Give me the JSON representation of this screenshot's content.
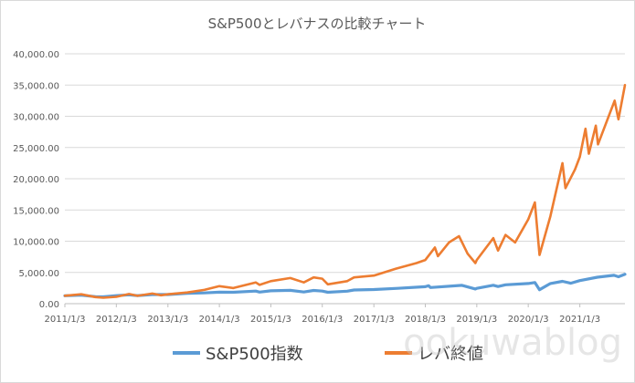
{
  "chart_data": {
    "type": "line",
    "title": "S&P500とレバナスの比較チャート",
    "xlabel": "",
    "ylabel": "",
    "ylim": [
      0,
      40000
    ],
    "yticks": [
      "0.00",
      "5,000.00",
      "10,000.00",
      "15,000.00",
      "20,000.00",
      "25,000.00",
      "30,000.00",
      "35,000.00",
      "40,000.00"
    ],
    "xticks": [
      "2011/1/3",
      "2012/1/3",
      "2013/1/3",
      "2014/1/3",
      "2015/1/3",
      "2016/1/3",
      "2017/1/3",
      "2018/1/3",
      "2019/1/3",
      "2020/1/3",
      "2021/1/3"
    ],
    "x_range": [
      "2011/1/3",
      "2021/11/19"
    ],
    "grid": true,
    "legend_position": "bottom",
    "series": [
      {
        "name": "S&P500指数",
        "color": "#5b9bd5",
        "points": [
          [
            "2011/1/3",
            1270
          ],
          [
            "2011/4/29",
            1360
          ],
          [
            "2011/8/8",
            1120
          ],
          [
            "2011/10/3",
            1100
          ],
          [
            "2012/1/3",
            1280
          ],
          [
            "2012/4/2",
            1420
          ],
          [
            "2012/6/1",
            1280
          ],
          [
            "2012/9/14",
            1460
          ],
          [
            "2013/1/3",
            1460
          ],
          [
            "2013/5/21",
            1670
          ],
          [
            "2013/9/18",
            1720
          ],
          [
            "2014/1/3",
            1840
          ],
          [
            "2014/4/11",
            1820
          ],
          [
            "2014/9/18",
            2010
          ],
          [
            "2014/10/15",
            1860
          ],
          [
            "2015/1/3",
            2060
          ],
          [
            "2015/5/21",
            2130
          ],
          [
            "2015/8/25",
            1870
          ],
          [
            "2015/11/3",
            2110
          ],
          [
            "2016/1/3",
            2010
          ],
          [
            "2016/2/11",
            1830
          ],
          [
            "2016/6/27",
            2000
          ],
          [
            "2016/8/15",
            2190
          ],
          [
            "2017/1/3",
            2260
          ],
          [
            "2017/6/19",
            2450
          ],
          [
            "2018/1/3",
            2710
          ],
          [
            "2018/1/26",
            2870
          ],
          [
            "2018/2/8",
            2580
          ],
          [
            "2018/9/20",
            2930
          ],
          [
            "2018/12/24",
            2350
          ],
          [
            "2019/1/3",
            2450
          ],
          [
            "2019/4/30",
            2950
          ],
          [
            "2019/6/3",
            2740
          ],
          [
            "2019/7/26",
            3020
          ],
          [
            "2020/1/3",
            3230
          ],
          [
            "2020/2/19",
            3390
          ],
          [
            "2020/3/23",
            2240
          ],
          [
            "2020/6/8",
            3230
          ],
          [
            "2020/9/2",
            3580
          ],
          [
            "2020/10/30",
            3270
          ],
          [
            "2021/1/3",
            3700
          ],
          [
            "2021/5/7",
            4230
          ],
          [
            "2021/9/2",
            4540
          ],
          [
            "2021/10/4",
            4300
          ],
          [
            "2021/11/19",
            4700
          ]
        ]
      },
      {
        "name": "レバ終値",
        "color": "#ed7d31",
        "points": [
          [
            "2011/1/3",
            1270
          ],
          [
            "2011/4/29",
            1500
          ],
          [
            "2011/8/8",
            1050
          ],
          [
            "2011/10/3",
            950
          ],
          [
            "2012/1/3",
            1100
          ],
          [
            "2012/4/2",
            1550
          ],
          [
            "2012/6/1",
            1250
          ],
          [
            "2012/9/14",
            1620
          ],
          [
            "2012/11/15",
            1350
          ],
          [
            "2013/1/3",
            1500
          ],
          [
            "2013/5/21",
            1800
          ],
          [
            "2013/9/18",
            2200
          ],
          [
            "2014/1/3",
            2800
          ],
          [
            "2014/4/11",
            2500
          ],
          [
            "2014/9/18",
            3400
          ],
          [
            "2014/10/15",
            3000
          ],
          [
            "2015/1/3",
            3600
          ],
          [
            "2015/5/21",
            4100
          ],
          [
            "2015/8/25",
            3400
          ],
          [
            "2015/11/3",
            4200
          ],
          [
            "2016/1/3",
            4000
          ],
          [
            "2016/2/11",
            3100
          ],
          [
            "2016/6/27",
            3600
          ],
          [
            "2016/8/15",
            4200
          ],
          [
            "2017/1/3",
            4500
          ],
          [
            "2017/6/9",
            5600
          ],
          [
            "2017/11/1",
            6500
          ],
          [
            "2018/1/3",
            7000
          ],
          [
            "2018/3/12",
            9000
          ],
          [
            "2018/4/2",
            7600
          ],
          [
            "2018/6/20",
            9800
          ],
          [
            "2018/8/30",
            10800
          ],
          [
            "2018/10/30",
            8000
          ],
          [
            "2018/12/24",
            6500
          ],
          [
            "2019/1/3",
            7000
          ],
          [
            "2019/4/30",
            10500
          ],
          [
            "2019/6/3",
            8500
          ],
          [
            "2019/7/26",
            11000
          ],
          [
            "2019/10/2",
            9800
          ],
          [
            "2020/1/3",
            13500
          ],
          [
            "2020/2/19",
            16200
          ],
          [
            "2020/3/23",
            7800
          ],
          [
            "2020/6/8",
            14000
          ],
          [
            "2020/9/2",
            22500
          ],
          [
            "2020/9/23",
            18500
          ],
          [
            "2020/11/30",
            21500
          ],
          [
            "2021/1/3",
            23500
          ],
          [
            "2021/2/12",
            28000
          ],
          [
            "2021/3/8",
            24000
          ],
          [
            "2021/4/26",
            28500
          ],
          [
            "2021/5/12",
            25500
          ],
          [
            "2021/9/7",
            32500
          ],
          [
            "2021/10/4",
            29500
          ],
          [
            "2021/11/19",
            35000
          ]
        ]
      }
    ],
    "watermark": "ookuwablog"
  }
}
